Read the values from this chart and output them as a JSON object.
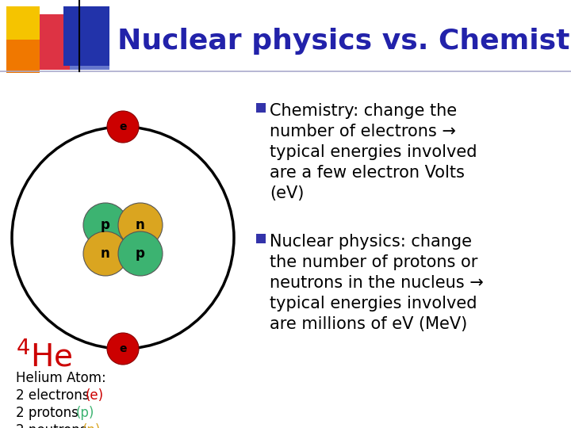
{
  "title": "Nuclear physics vs. Chemistry",
  "title_color": "#2222AA",
  "bg_color": "#FFFFFF",
  "atom_circle_color": "#000000",
  "electron_color": "#CC0000",
  "proton_color": "#3CB371",
  "neutron_color": "#DAA520",
  "bullet_color": "#3333AA",
  "bullet_text1_lines": [
    "Chemistry: change the",
    "number of electrons →",
    "typical energies involved",
    "are a few electron Volts",
    "(eV)"
  ],
  "bullet_text2_lines": [
    "Nuclear physics: change",
    "the number of protons or",
    "neutrons in the nucleus →",
    "typical energies involved",
    "are millions of eV (MeV)"
  ]
}
